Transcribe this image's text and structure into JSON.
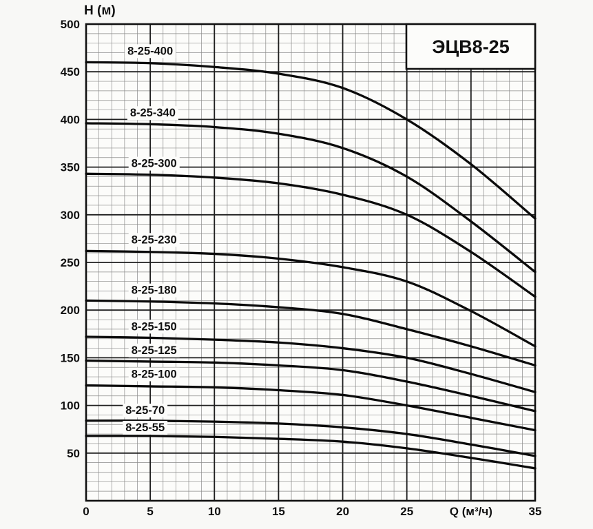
{
  "page": {
    "background": "#f8f8f6"
  },
  "chart_data": {
    "type": "line",
    "title": "ЭЦВ8-25",
    "ylabel": "H (м)",
    "xlabel": "Q (м³/ч)",
    "xlim": [
      0,
      35
    ],
    "ylim": [
      0,
      500
    ],
    "grid": true,
    "x_minor_step": 1,
    "y_minor_step": 10,
    "x_major_step": 5,
    "y_major_step": 50,
    "y_ticks": [
      50,
      100,
      150,
      200,
      250,
      300,
      350,
      400,
      450,
      500
    ],
    "x_ticks": [
      {
        "q": 0,
        "label": "0"
      },
      {
        "q": 5,
        "label": "5"
      },
      {
        "q": 10,
        "label": "10"
      },
      {
        "q": 15,
        "label": "15"
      },
      {
        "q": 20,
        "label": "20"
      },
      {
        "q": 25,
        "label": "25"
      },
      {
        "q": 30,
        "label": "Q (м³/ч)"
      },
      {
        "q": 35,
        "label": "35"
      }
    ],
    "x": [
      0,
      5,
      10,
      15,
      20,
      25,
      30,
      35
    ],
    "series": [
      {
        "name": "8-25-400",
        "values": [
          460,
          459,
          455,
          448,
          433,
          400,
          353,
          296
        ],
        "label_q": 5.0,
        "label_h": 468
      },
      {
        "name": "8-25-340",
        "values": [
          396,
          395,
          392,
          385,
          370,
          340,
          293,
          240
        ],
        "label_q": 5.2,
        "label_h": 403
      },
      {
        "name": "8-25-300",
        "values": [
          343,
          342,
          339,
          333,
          321,
          300,
          261,
          214
        ],
        "label_q": 5.3,
        "label_h": 350
      },
      {
        "name": "8-25-230",
        "values": [
          262,
          261,
          259,
          254,
          245,
          230,
          199,
          162
        ],
        "label_q": 5.3,
        "label_h": 270
      },
      {
        "name": "8-25-180",
        "values": [
          210,
          209,
          207,
          203,
          196,
          180,
          162,
          142
        ],
        "label_q": 5.3,
        "label_h": 217
      },
      {
        "name": "8-25-150",
        "values": [
          172,
          171,
          169,
          166,
          160,
          150,
          133,
          114
        ],
        "label_q": 5.3,
        "label_h": 179
      },
      {
        "name": "8-25-125",
        "values": [
          147,
          146,
          145,
          142,
          137,
          125,
          110,
          94
        ],
        "label_q": 5.3,
        "label_h": 154
      },
      {
        "name": "8-25-100",
        "values": [
          121,
          120,
          119,
          116,
          111,
          100,
          87,
          74
        ],
        "label_q": 5.3,
        "label_h": 129
      },
      {
        "name": "8-25-70",
        "values": [
          84,
          84,
          83,
          81,
          77,
          70,
          59,
          47
        ],
        "label_q": 4.6,
        "label_h": 91
      },
      {
        "name": "8-25-55",
        "values": [
          68,
          68,
          67,
          65,
          62,
          55,
          45,
          34
        ],
        "label_q": 4.6,
        "label_h": 73
      }
    ],
    "colors": {
      "curve": "#0b0b0b",
      "grid_major": "#1f1f1f",
      "grid_minor": "#8b8b8b",
      "frame": "#111111",
      "plot_bg": "#fcfcfa",
      "text": "#111111",
      "title_box_bg": "#fcfcfa"
    }
  }
}
